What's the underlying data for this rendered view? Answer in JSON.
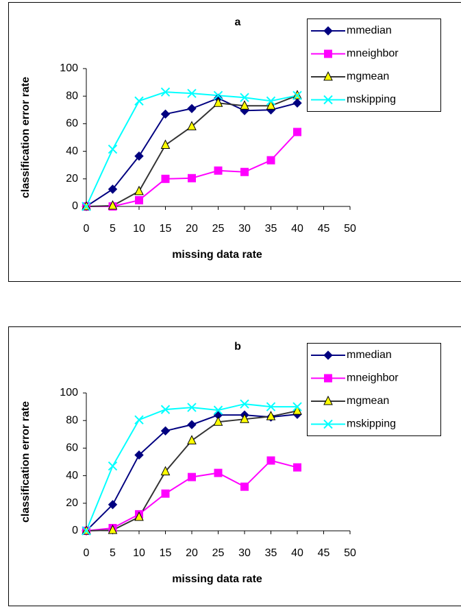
{
  "chart_data": [
    {
      "type": "line",
      "title": "a",
      "x_label": "missing data rate",
      "y_label": "classification error rate",
      "x": [
        0,
        5,
        10,
        15,
        20,
        25,
        30,
        35,
        40
      ],
      "xlim": [
        0,
        50
      ],
      "xticks": [
        0,
        5,
        10,
        15,
        20,
        25,
        30,
        35,
        40,
        45,
        50
      ],
      "ylim": [
        0,
        100
      ],
      "yticks": [
        0,
        20,
        40,
        60,
        80,
        100
      ],
      "legend": "upper right",
      "series": [
        {
          "name": "mmedian",
          "color": "#000080",
          "marker": "diamond",
          "values": [
            0,
            12.5,
            36.5,
            67,
            71,
            78.5,
            69.5,
            70,
            75
          ]
        },
        {
          "name": "mneighbor",
          "color": "#ff00ff",
          "marker": "square",
          "values": [
            0,
            0,
            4.5,
            20,
            20.5,
            26,
            25,
            33.5,
            54
          ]
        },
        {
          "name": "mgmean",
          "color": "#333333",
          "marker": "triangle",
          "values": [
            0,
            0.5,
            11,
            44.5,
            58,
            75,
            73,
            73,
            80.5
          ]
        },
        {
          "name": "mskipping",
          "color": "#00ffff",
          "marker": "x",
          "values": [
            0,
            41.5,
            76.5,
            83,
            82,
            80.5,
            79,
            76.5,
            80.5
          ]
        }
      ]
    },
    {
      "type": "line",
      "title": "b",
      "x_label": "missing data rate",
      "y_label": "classification error rate",
      "x": [
        0,
        5,
        10,
        15,
        20,
        25,
        30,
        35,
        40
      ],
      "xlim": [
        0,
        50
      ],
      "xticks": [
        0,
        5,
        10,
        15,
        20,
        25,
        30,
        35,
        40,
        45,
        50
      ],
      "ylim": [
        0,
        100
      ],
      "yticks": [
        0,
        20,
        40,
        60,
        80,
        100
      ],
      "legend": "upper right",
      "series": [
        {
          "name": "mmedian",
          "color": "#000080",
          "marker": "diamond",
          "values": [
            0,
            19,
            55,
            72.5,
            77,
            84,
            84,
            82.5,
            84.5
          ]
        },
        {
          "name": "mneighbor",
          "color": "#ff00ff",
          "marker": "square",
          "values": [
            0,
            2,
            12,
            27,
            39,
            42,
            32,
            51,
            46
          ]
        },
        {
          "name": "mgmean",
          "color": "#333333",
          "marker": "triangle",
          "values": [
            0,
            0.5,
            10,
            43,
            65.5,
            79,
            81,
            83,
            87
          ]
        },
        {
          "name": "mskipping",
          "color": "#00ffff",
          "marker": "x",
          "values": [
            0,
            47,
            80.5,
            88,
            89.5,
            87.5,
            92,
            90,
            90
          ]
        }
      ]
    }
  ]
}
